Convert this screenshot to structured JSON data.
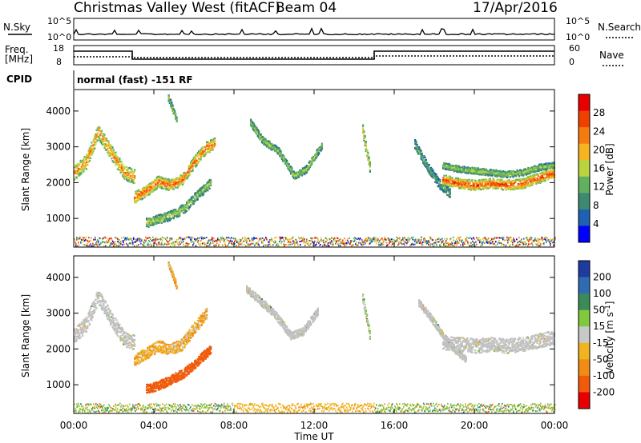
{
  "header": {
    "title": "Christmas Valley West (fitACF)",
    "beam": "Beam 04",
    "date": "17/Apr/2016"
  },
  "noise_panel": {
    "left_label": "N.Sky",
    "right_label": "N.Search",
    "left_ticks": [
      "10^5",
      "10^0"
    ],
    "right_ticks": [
      "10^5",
      "10^0"
    ]
  },
  "freq_panel": {
    "left_label_line1": "Freq.",
    "left_label_line2": "[MHz]",
    "right_label": "Nave",
    "left_ticks": [
      "18",
      "8"
    ],
    "right_ticks": [
      "60",
      "0"
    ]
  },
  "cpid": {
    "label": "CPID",
    "value": "normal (fast) -151 RF"
  },
  "colors": {
    "power_scale": [
      "#0000ff",
      "#2060b0",
      "#3d8a70",
      "#61b060",
      "#b9d43e",
      "#f5b420",
      "#f57a10",
      "#f04000",
      "#e80000"
    ],
    "velocity_scale": [
      "#1e3ca0",
      "#2f6bb0",
      "#3a8a5a",
      "#80c83c",
      "#c8c8c8",
      "#f0b41e",
      "#f08c14",
      "#f05a0a",
      "#e80000"
    ],
    "ground_scatter": "#c0c0c0"
  },
  "chart_data": [
    {
      "type": "heatmap",
      "name": "power",
      "ylabel": "Slant Range [km]",
      "y_ticks": [
        "1000",
        "2000",
        "3000",
        "4000"
      ],
      "ylim": [
        200,
        4600
      ],
      "xlim": [
        0,
        24
      ],
      "colorbar_label": "Power [dB]",
      "colorbar_ticks": [
        "4",
        "8",
        "12",
        "16",
        "20",
        "24",
        "28"
      ],
      "scatter_bands": [
        {
          "t": [
            0.0,
            0.6,
            1.2,
            1.8,
            2.5,
            3.0
          ],
          "r": [
            2300,
            2600,
            3450,
            2900,
            2300,
            2200
          ],
          "w": 400,
          "p": 22
        },
        {
          "t": [
            3.0,
            3.6,
            4.2,
            4.8,
            5.4,
            6.0,
            6.6,
            7.0
          ],
          "r": [
            1600,
            1800,
            2050,
            1950,
            2100,
            2600,
            3000,
            3100
          ],
          "w": 320,
          "p": 24
        },
        {
          "t": [
            3.6,
            4.2,
            4.8,
            5.5,
            6.2,
            6.8
          ],
          "r": [
            900,
            1000,
            1100,
            1300,
            1700,
            2000
          ],
          "w": 260,
          "p": 14
        },
        {
          "t": [
            8.8,
            9.4,
            10.2,
            11.0,
            11.6,
            12.4
          ],
          "r": [
            3700,
            3200,
            2900,
            2200,
            2400,
            3100
          ],
          "w": 200,
          "p": 14
        },
        {
          "t": [
            14.4,
            14.6,
            14.8
          ],
          "r": [
            3500,
            2900,
            2300
          ],
          "w": 300,
          "p": 18
        },
        {
          "t": [
            17.0,
            17.6,
            18.2,
            18.8
          ],
          "r": [
            3100,
            2500,
            2000,
            1700
          ],
          "w": 260,
          "p": 10
        },
        {
          "t": [
            18.4,
            19.2,
            20.0,
            20.8,
            21.6,
            22.4,
            23.2,
            24.0
          ],
          "r": [
            2100,
            2000,
            1950,
            2000,
            1950,
            2000,
            2150,
            2300
          ],
          "w": 280,
          "p": 26
        },
        {
          "t": [
            18.4,
            19.2,
            20.0,
            20.8,
            21.6,
            22.4,
            23.2,
            24.0
          ],
          "r": [
            2500,
            2400,
            2350,
            2300,
            2250,
            2300,
            2450,
            2500
          ],
          "w": 180,
          "p": 14
        },
        {
          "t": [
            4.7,
            4.9,
            5.1
          ],
          "r": [
            4400,
            4100,
            3800
          ],
          "w": 180,
          "p": 14
        }
      ]
    },
    {
      "type": "heatmap",
      "name": "velocity",
      "ylabel": "Slant Range [km]",
      "y_ticks": [
        "1000",
        "2000",
        "3000",
        "4000"
      ],
      "ylim": [
        200,
        4600
      ],
      "xlim": [
        0,
        24
      ],
      "xlabel": "Time UT",
      "x_ticks": [
        "00:00",
        "04:00",
        "08:00",
        "12:00",
        "16:00",
        "20:00",
        "00:00"
      ],
      "colorbar_label": "Velocity [m s^-1]",
      "colorbar_ticks": [
        "200",
        "100",
        "50",
        "15",
        "-15",
        "-50",
        "-100",
        "-200"
      ],
      "scatter_bands": [
        {
          "t": [
            0.0,
            0.6,
            1.2,
            1.8,
            2.5,
            3.0
          ],
          "r": [
            2400,
            2700,
            3500,
            2900,
            2300,
            2200
          ],
          "w": 420,
          "v": 0,
          "gs": true
        },
        {
          "t": [
            3.0,
            3.6,
            4.2,
            4.8,
            5.4,
            6.0,
            6.6
          ],
          "r": [
            1700,
            1900,
            2100,
            2000,
            2150,
            2600,
            3000
          ],
          "w": 320,
          "v": -40
        },
        {
          "t": [
            3.6,
            4.2,
            4.8,
            5.5,
            6.2,
            6.8
          ],
          "r": [
            900,
            1000,
            1150,
            1350,
            1700,
            2000
          ],
          "w": 260,
          "v": -160
        },
        {
          "t": [
            8.6,
            9.2,
            10.0,
            10.8,
            11.4,
            12.2
          ],
          "r": [
            3700,
            3400,
            3000,
            2400,
            2500,
            3100
          ],
          "w": 220,
          "v": 0,
          "gs": true
        },
        {
          "t": [
            14.4,
            14.6,
            14.8
          ],
          "r": [
            3400,
            2900,
            2300
          ],
          "w": 300,
          "v": 20
        },
        {
          "t": [
            18.4,
            19.2,
            20.0,
            20.8,
            21.6,
            22.4,
            23.2,
            24.0
          ],
          "r": [
            2200,
            2150,
            2100,
            2150,
            2100,
            2150,
            2250,
            2350
          ],
          "w": 400,
          "v": 0,
          "gs": true
        },
        {
          "t": [
            17.2,
            17.8,
            18.4,
            19.0,
            19.6
          ],
          "r": [
            3300,
            2900,
            2400,
            2000,
            1700
          ],
          "w": 200,
          "v": 0,
          "gs": true
        },
        {
          "t": [
            4.7,
            4.9,
            5.1
          ],
          "r": [
            4400,
            4100,
            3800
          ],
          "w": 180,
          "v": -40
        }
      ]
    }
  ]
}
